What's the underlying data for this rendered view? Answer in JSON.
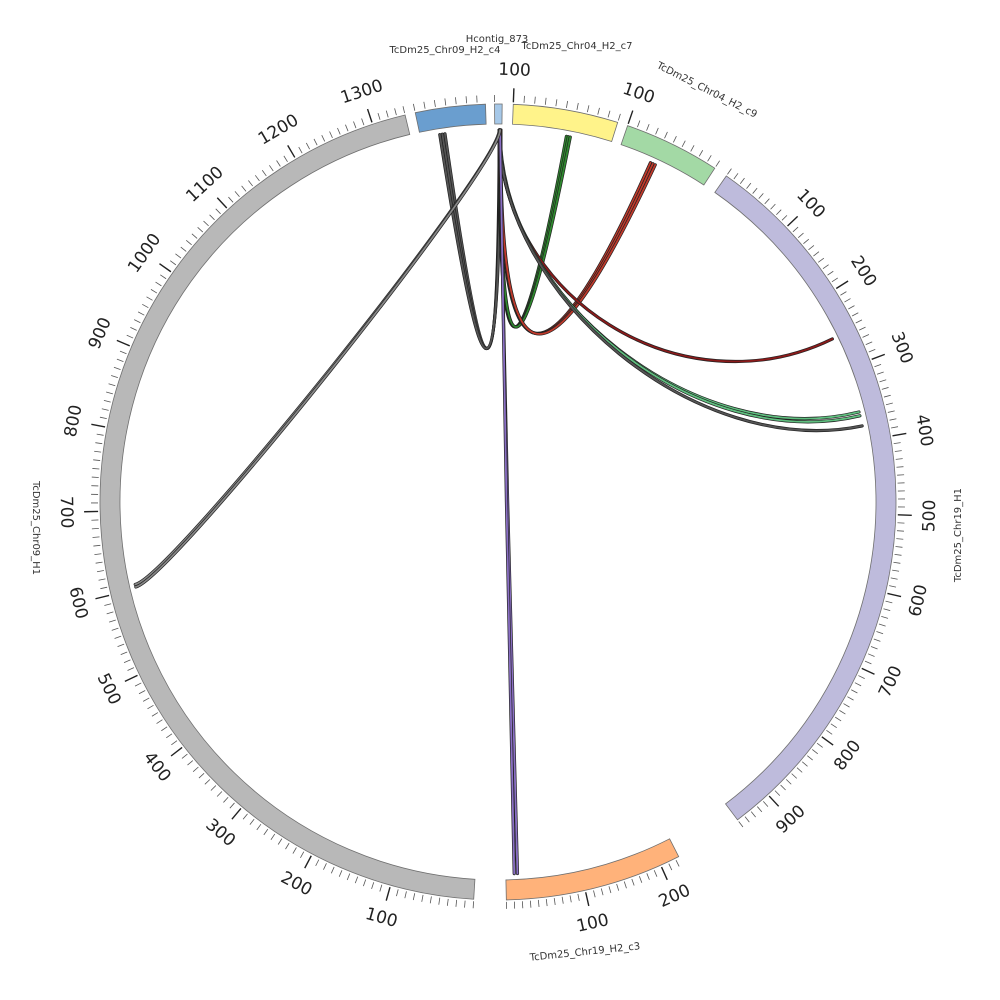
{
  "contigs": [
    {
      "name": "TcDm25_Chr09_H1",
      "length": 1340,
      "color": "#b8b8b8",
      "direction": "cw",
      "tick_labels": [
        "100",
        "200",
        "300",
        "400",
        "500",
        "600",
        "700",
        "800",
        "900",
        "1000",
        "1100",
        "1200",
        "1300"
      ]
    },
    {
      "name": "TcDm25_Chr09_H2_c4",
      "length": 68,
      "color": "#6a9ecf",
      "direction": "cw",
      "tick_labels": []
    },
    {
      "name": "Hcontig_873",
      "length": 5,
      "color": "#a6c8e8",
      "direction": "cw",
      "tick_labels": []
    },
    {
      "name": "TcDm25_Chr04_H2_c7",
      "length": 100,
      "color": "#fff38a",
      "direction": "ccw",
      "tick_labels": [
        "100"
      ]
    },
    {
      "name": "TcDm25_Chr04_H2_c9",
      "length": 100,
      "color": "#a3d9a5",
      "direction": "ccw",
      "tick_labels": [
        "100"
      ]
    },
    {
      "name": "TcDm25_Chr19_H1",
      "length": 950,
      "color": "#bebbdc",
      "direction": "cw",
      "tick_labels": [
        "100",
        "200",
        "300",
        "400",
        "500",
        "600",
        "700",
        "800",
        "900"
      ]
    },
    {
      "name": "TcDm25_Chr19_H2_c3",
      "length": 225,
      "color": "#ffb27a",
      "direction": "ccw",
      "tick_labels": [
        "100",
        "200"
      ]
    }
  ],
  "links": [
    {
      "from": "TcDm25_Chr09_H2_c4",
      "to": "Hcontig_873",
      "color": "#555555",
      "count": 3
    },
    {
      "from": "Hcontig_873",
      "to": "TcDm25_Chr04_H2_c7",
      "color": "#2e8b2e",
      "count": 3
    },
    {
      "from": "Hcontig_873",
      "to": "TcDm25_Chr04_H2_c9",
      "color": "#c0392b",
      "count": 3
    },
    {
      "from": "Hcontig_873",
      "to": "TcDm25_Chr19_H1",
      "color": "#8b1a1a",
      "count": 1
    },
    {
      "from": "Hcontig_873",
      "to": "TcDm25_Chr19_H1",
      "color": "#5fbf7f",
      "count": 2
    },
    {
      "from": "Hcontig_873",
      "to": "TcDm25_Chr19_H1",
      "color": "#555555",
      "count": 1
    },
    {
      "from": "Hcontig_873",
      "to": "TcDm25_Chr19_H2_c3",
      "color": "#8a6fc4",
      "count": 2
    },
    {
      "from": "Hcontig_873",
      "to": "TcDm25_Chr09_H1",
      "color": "#888888",
      "count": 2
    }
  ]
}
